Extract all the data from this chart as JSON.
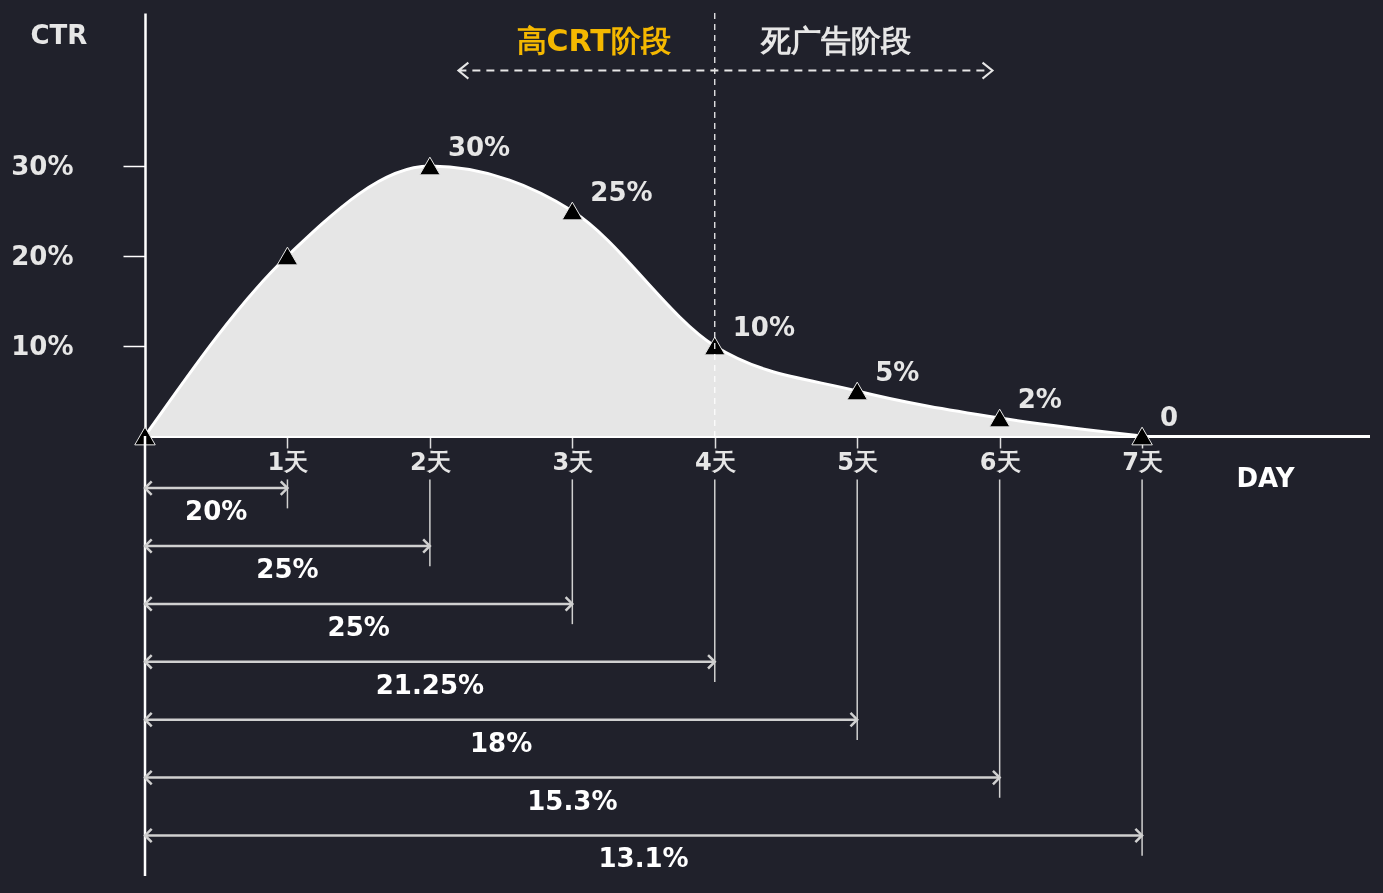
{
  "chart_data": {
    "type": "area",
    "color": "#e6e6e6",
    "marker": "triangle",
    "xlabel": "DAY",
    "ylabel": "CTR",
    "x": [
      0,
      1,
      2,
      3,
      4,
      5,
      6,
      7
    ],
    "values": [
      0,
      20,
      30,
      25,
      10,
      5,
      2,
      0
    ],
    "value_labels": [
      null,
      null,
      "30%",
      "25%",
      "10%",
      "5%",
      "2%",
      "0"
    ],
    "xlim": [
      0,
      8.6
    ],
    "xticks": [
      {
        "value": 1,
        "label": "1天"
      },
      {
        "value": 2,
        "label": "2天"
      },
      {
        "value": 3,
        "label": "3天"
      },
      {
        "value": 4,
        "label": "4天"
      },
      {
        "value": 5,
        "label": "5天"
      },
      {
        "value": 6,
        "label": "6天"
      },
      {
        "value": 7,
        "label": "7天"
      }
    ],
    "ylim": [
      0,
      47
    ],
    "yticks": [
      {
        "value": 10,
        "label": "10%"
      },
      {
        "value": 20,
        "label": "20%"
      },
      {
        "value": 30,
        "label": "30%"
      }
    ],
    "grid": false,
    "ref_lines": [
      {
        "axis": "x",
        "value": 4,
        "color": "#ffffff",
        "line_style": "dashed"
      }
    ],
    "annotations": [
      "高CRT阶段",
      "死广告阶段",
      "20%",
      "25%",
      "25%",
      "21.25%",
      "18%",
      "15.3%",
      "13.1%"
    ]
  }
}
